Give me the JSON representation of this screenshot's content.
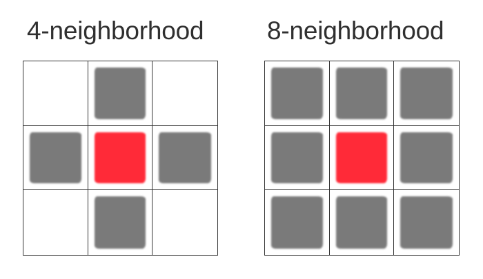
{
  "colors": {
    "neighbor": "#7a7a7a",
    "center": "#ff2a38"
  },
  "panels": [
    {
      "title": "4-neighborhood",
      "cells": [
        [
          "empty",
          "neighbor",
          "empty"
        ],
        [
          "neighbor",
          "center",
          "neighbor"
        ],
        [
          "empty",
          "neighbor",
          "empty"
        ]
      ]
    },
    {
      "title": "8-neighborhood",
      "cells": [
        [
          "neighbor",
          "neighbor",
          "neighbor"
        ],
        [
          "neighbor",
          "center",
          "neighbor"
        ],
        [
          "neighbor",
          "neighbor",
          "neighbor"
        ]
      ]
    }
  ]
}
